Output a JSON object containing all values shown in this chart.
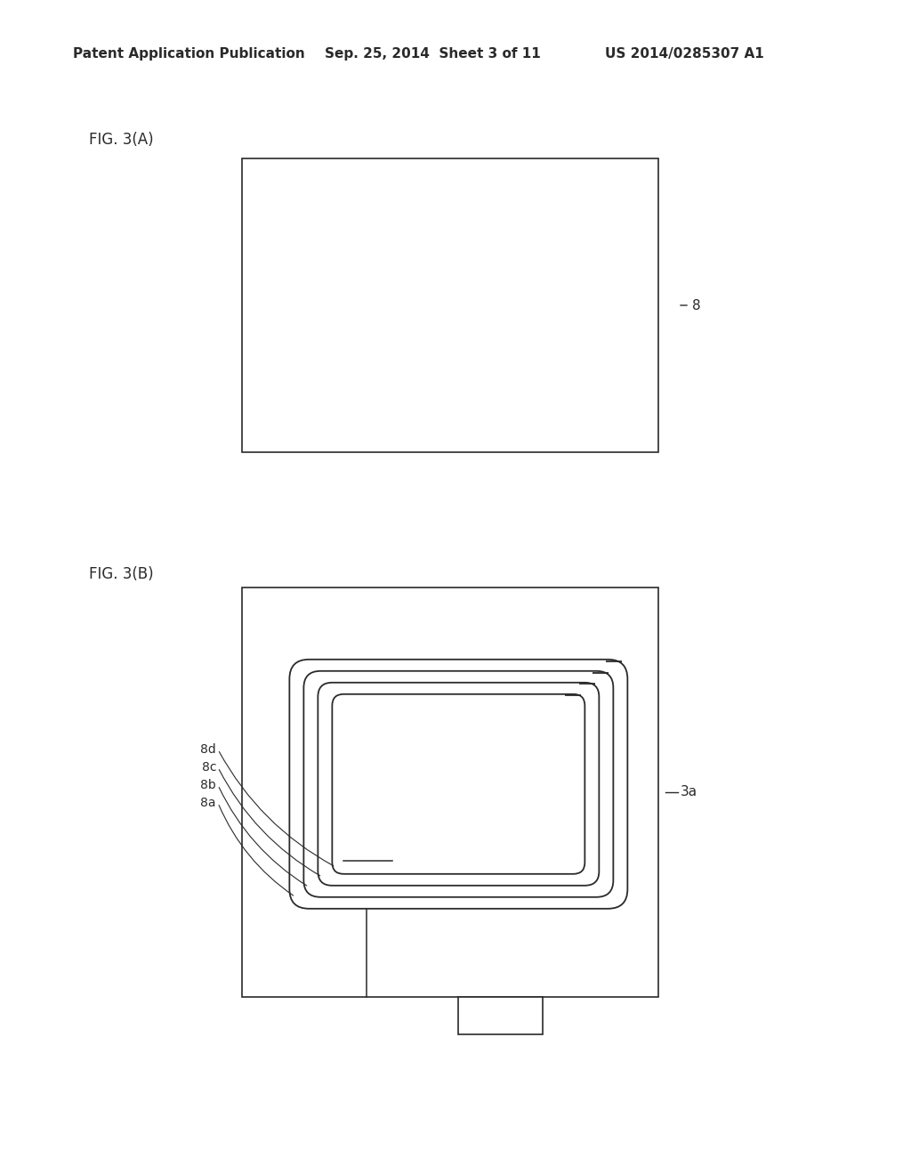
{
  "bg_color": "#ffffff",
  "line_color": "#2a2a2a",
  "header_text": "Patent Application Publication",
  "header_date": "Sep. 25, 2014  Sheet 3 of 11",
  "header_patent": "US 2014/0285307 A1",
  "fig_a_label": "FIG. 3(A)",
  "fig_b_label": "FIG. 3(B)",
  "label_8": "8",
  "label_3a": "3a",
  "label_8a": "8a",
  "label_8b": "8b",
  "label_8c": "8c",
  "label_8d": "8d",
  "header_fontsize": 11,
  "label_fontsize": 11,
  "fig_label_fontsize": 12
}
